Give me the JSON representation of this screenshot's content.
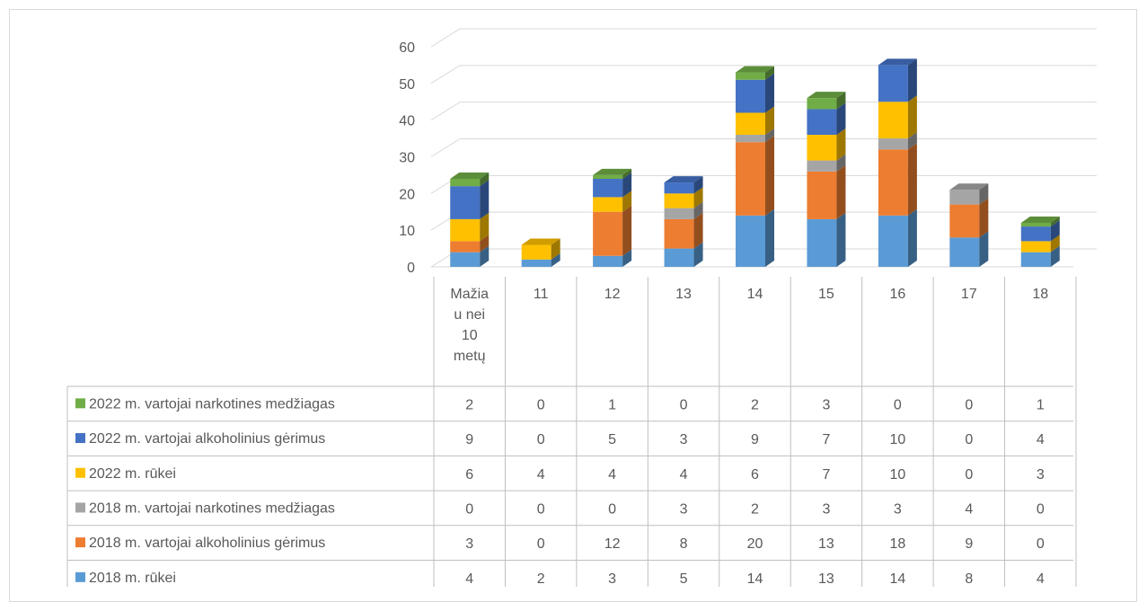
{
  "chart_data": {
    "type": "bar",
    "stacked": true,
    "style": "3d-column-with-data-table",
    "categories": [
      [
        "Mažia",
        "u nei",
        "10",
        "metų"
      ],
      [
        "11"
      ],
      [
        "12"
      ],
      [
        "13"
      ],
      [
        "14"
      ],
      [
        "15"
      ],
      [
        "16"
      ],
      [
        "17"
      ],
      [
        "18"
      ]
    ],
    "yticks": [
      "0",
      "10",
      "20",
      "30",
      "40",
      "50",
      "60"
    ],
    "ylim": [
      0,
      60
    ],
    "grid": true,
    "series": [
      {
        "name": "2018 m. rūkei",
        "color": "#5b9bd5",
        "values": [
          4,
          2,
          3,
          5,
          14,
          13,
          14,
          8,
          4
        ]
      },
      {
        "name": "2018 m. vartojai alkoholinius gėrimus",
        "color": "#ed7d31",
        "values": [
          3,
          0,
          12,
          8,
          20,
          13,
          18,
          9,
          0
        ]
      },
      {
        "name": "2018 m. vartojai narkotines medžiagas",
        "color": "#a5a5a5",
        "values": [
          0,
          0,
          0,
          3,
          2,
          3,
          3,
          4,
          0
        ]
      },
      {
        "name": "2022 m. rūkei",
        "color": "#ffc000",
        "values": [
          6,
          4,
          4,
          4,
          6,
          7,
          10,
          0,
          3
        ]
      },
      {
        "name": "2022 m. vartojai alkoholinius gėrimus",
        "color": "#4472c4",
        "values": [
          9,
          0,
          5,
          3,
          9,
          7,
          10,
          0,
          4
        ]
      },
      {
        "name": "2022 m. vartojai narkotines medžiagas",
        "color": "#70ad47",
        "values": [
          2,
          0,
          1,
          0,
          2,
          3,
          0,
          0,
          1
        ]
      }
    ]
  }
}
